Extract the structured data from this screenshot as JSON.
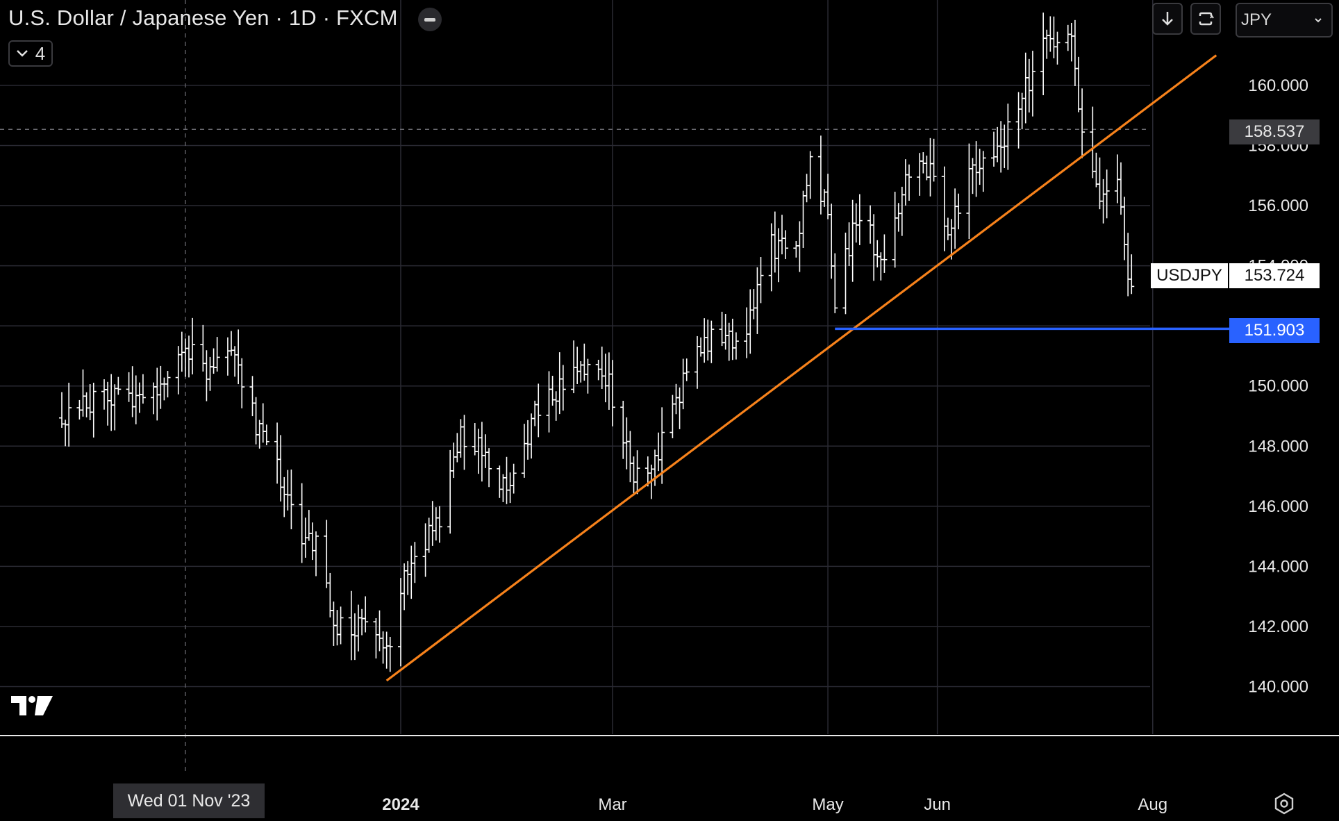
{
  "header": {
    "title": "U.S. Dollar / Japanese Yen · 1D · FXCM",
    "collapse_count": "4",
    "currency": "JPY"
  },
  "icons": {
    "download": "download-arrow-icon",
    "fullscreen": "fullscreen-icon",
    "dropdown": "chevron-down-icon",
    "settings": "settings-gear-icon",
    "logo": "tradingview-logo"
  },
  "colors": {
    "background": "#000000",
    "candles": "#ffffff",
    "trendline": "#f7821b",
    "support_line": "#2962ff",
    "grid": "#2a2a33"
  },
  "tags": {
    "current_price": "158.537",
    "symbol": "USDJPY",
    "last_price": "153.724",
    "support_level": "151.903"
  },
  "crosshair_date": "Wed 01 Nov '23",
  "chart_data": {
    "type": "ohlc",
    "title": "U.S. Dollar / Japanese Yen · 1D · FXCM",
    "x_tick_labels": [
      "2024",
      "Mar",
      "May",
      "Jun",
      "Aug"
    ],
    "y_tick_labels": [
      "140.000",
      "142.000",
      "144.000",
      "146.000",
      "148.000",
      "150.000",
      "154.000",
      "156.000",
      "158.000",
      "160.000"
    ],
    "ylim": [
      138.5,
      162.5
    ],
    "grid": true,
    "series": [
      {
        "points": [
          [
            "2023-09-27",
            149.1
          ],
          [
            "2023-10-03",
            149.4
          ],
          [
            "2023-10-10",
            149.5
          ],
          [
            "2023-10-17",
            149.6
          ],
          [
            "2023-10-24",
            150.0
          ],
          [
            "2023-10-31",
            151.5
          ],
          [
            "2023-11-07",
            150.4
          ],
          [
            "2023-11-13",
            151.6
          ],
          [
            "2023-11-20",
            149.0
          ],
          [
            "2023-11-27",
            147.2
          ],
          [
            "2023-12-04",
            145.0
          ],
          [
            "2023-12-08",
            144.8
          ],
          [
            "2023-12-14",
            141.9
          ],
          [
            "2023-12-21",
            142.2
          ],
          [
            "2023-12-28",
            141.0
          ],
          [
            "2024-01-04",
            144.5
          ],
          [
            "2024-01-11",
            145.3
          ],
          [
            "2024-01-18",
            148.3
          ],
          [
            "2024-01-25",
            147.7
          ],
          [
            "2024-02-01",
            146.4
          ],
          [
            "2024-02-08",
            149.3
          ],
          [
            "2024-02-15",
            150.0
          ],
          [
            "2024-02-22",
            150.4
          ],
          [
            "2024-02-29",
            150.0
          ],
          [
            "2024-03-07",
            147.2
          ],
          [
            "2024-03-11",
            147.0
          ],
          [
            "2024-03-18",
            149.2
          ],
          [
            "2024-03-25",
            151.3
          ],
          [
            "2024-04-01",
            151.6
          ],
          [
            "2024-04-08",
            151.8
          ],
          [
            "2024-04-15",
            154.6
          ],
          [
            "2024-04-22",
            154.8
          ],
          [
            "2024-04-26",
            157.6
          ],
          [
            "2024-05-01",
            155.8
          ],
          [
            "2024-05-03",
            153.0
          ],
          [
            "2024-05-10",
            155.8
          ],
          [
            "2024-05-16",
            154.1
          ],
          [
            "2024-05-23",
            156.9
          ],
          [
            "2024-05-30",
            157.2
          ],
          [
            "2024-06-04",
            154.9
          ],
          [
            "2024-06-11",
            157.3
          ],
          [
            "2024-06-18",
            157.9
          ],
          [
            "2024-06-25",
            159.7
          ],
          [
            "2024-07-03",
            161.7
          ],
          [
            "2024-07-09",
            161.5
          ],
          [
            "2024-07-11",
            158.8
          ],
          [
            "2024-07-17",
            156.2
          ],
          [
            "2024-07-22",
            157.0
          ],
          [
            "2024-07-25",
            153.9
          ],
          [
            "2024-07-26",
            153.7
          ]
        ]
      }
    ],
    "trendline": {
      "from": [
        "2023-12-28",
        140.2
      ],
      "to": [
        "2024-08-19",
        161.0
      ]
    },
    "horizontal_level": {
      "price": 151.903,
      "from": "2024-05-03",
      "to": "2024-07-25"
    },
    "dashed_price_line": 158.537,
    "crosshair_x": "2023-11-01"
  }
}
